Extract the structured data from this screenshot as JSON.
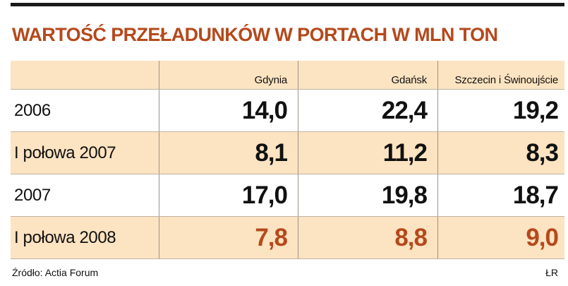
{
  "chart_data": {
    "type": "table",
    "title": "WARTOŚĆ PRZEŁADUNKÓW W PORTACH W MLN TON",
    "columns": [
      "Gdynia",
      "Gdańsk",
      "Szczecin i Świnoujście"
    ],
    "rows": [
      {
        "label": "2006",
        "values": [
          "14,0",
          "22,4",
          "19,2"
        ]
      },
      {
        "label": "I połowa 2007",
        "values": [
          "8,1",
          "11,2",
          "8,3"
        ]
      },
      {
        "label": "2007",
        "values": [
          "17,0",
          "19,8",
          "18,7"
        ]
      },
      {
        "label": "I połowa 2008",
        "values": [
          "7,8",
          "8,8",
          "9,0"
        ]
      }
    ],
    "source": "Źródło: Actia Forum",
    "credit": "ŁR",
    "colors": {
      "header_fill": "#fce3c1",
      "shaded_row_fill": "#fce3c1",
      "highlight_text": "#b5491c",
      "title_color": "#b5491c",
      "text": "#111111"
    }
  }
}
